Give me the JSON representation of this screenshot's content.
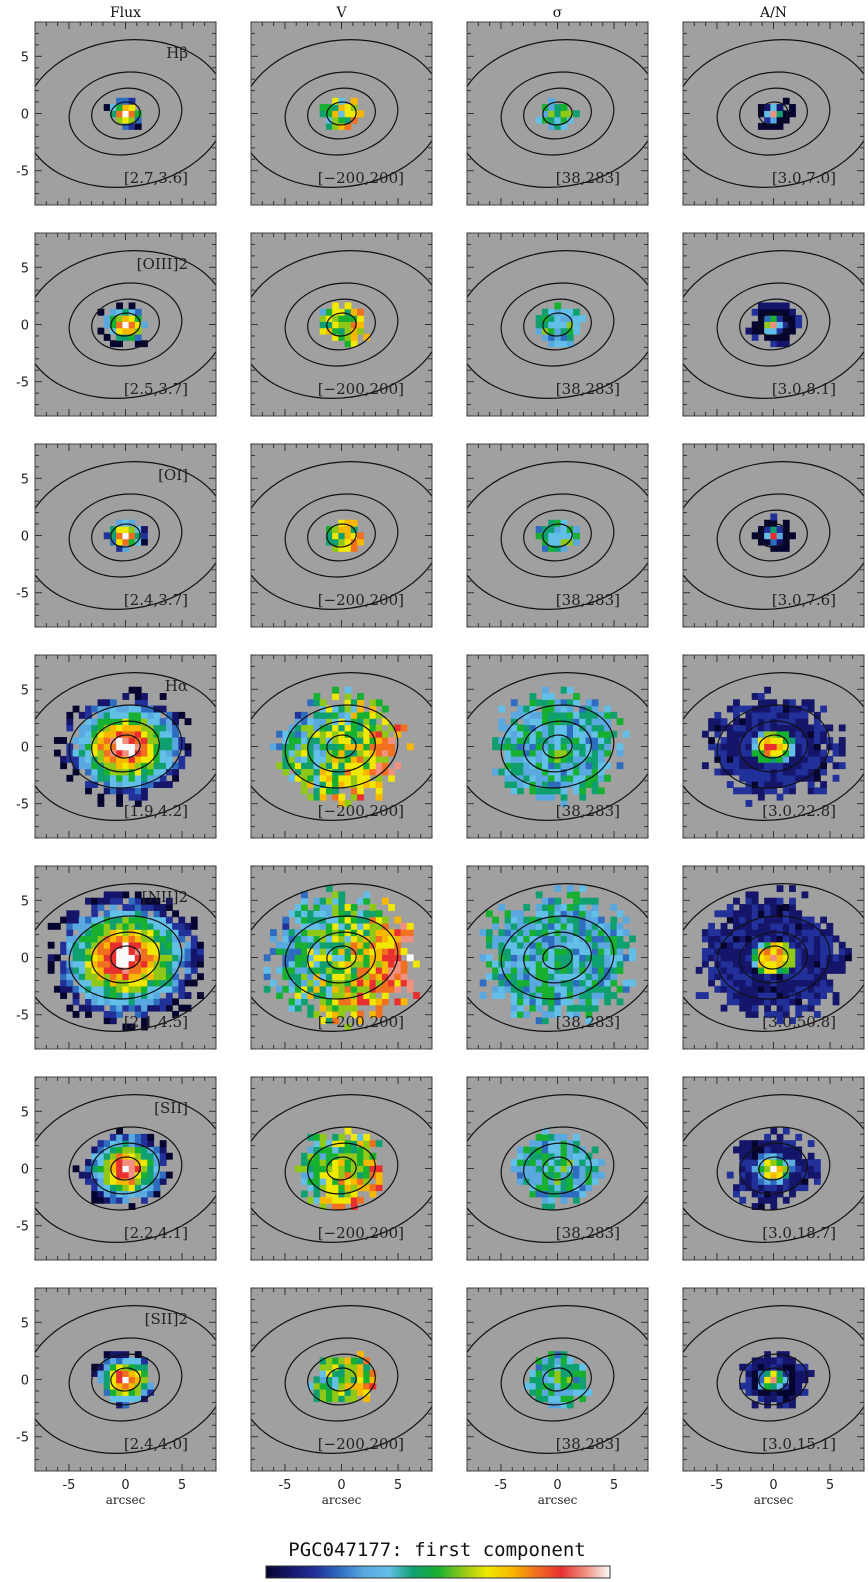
{
  "figure": {
    "title": "PGC047177: first component",
    "xlabel": "arcsec",
    "column_headers": [
      "Flux",
      "V",
      "σ",
      "A/N"
    ],
    "row_lines": [
      "Hβ",
      "[OIII]2",
      "[OI]",
      "Hα",
      "[NII]2",
      "[SII]",
      "[SII]2"
    ],
    "colormap": [
      "#050530",
      "#15156a",
      "#22309a",
      "#2e6cc0",
      "#5aa8e0",
      "#62c0e8",
      "#10a070",
      "#18b030",
      "#90c818",
      "#f0e800",
      "#f8b800",
      "#f07020",
      "#e83030",
      "#f09080",
      "#fafafa"
    ],
    "panel_background": "#a0a0a0"
  },
  "chart_data": {
    "type": "heatmap",
    "xlim": [
      -8,
      8
    ],
    "ylim": [
      -8,
      8
    ],
    "xticks": [
      "-5",
      "0",
      "5"
    ],
    "yticks": [
      "5",
      "0",
      "-5"
    ],
    "ranges": [
      [
        "[2.7,3.6]",
        "[−200,200]",
        "[38,283]",
        "[3.0,7.0]"
      ],
      [
        "[2.5,3.7]",
        "[−200,200]",
        "[38,283]",
        "[3.0,8.1]"
      ],
      [
        "[2.4,3.7]",
        "[−200,200]",
        "[38,283]",
        "[3.0,7.6]"
      ],
      [
        "[1.9,4.2]",
        "[−200,200]",
        "[38,283]",
        "[3.0,22.8]"
      ],
      [
        "[2.1,4.5]",
        "[−200,200]",
        "[38,283]",
        "[3.0,50.8]"
      ],
      [
        "[2.2,4.1]",
        "[−200,200]",
        "[38,283]",
        "[3.0,18.7]"
      ],
      [
        "[2.4,4.0]",
        "[−200,200]",
        "[38,283]",
        "[3.0,15.1]"
      ]
    ],
    "emission_extent_arcsec": [
      1.5,
      2.0,
      1.6,
      5.0,
      6.0,
      3.5,
      2.6
    ],
    "contour_semi_axes_arcsec": [
      [
        1.3,
        1.0
      ],
      [
        3.0,
        2.2
      ],
      [
        5.0,
        3.6
      ],
      [
        9.0,
        6.4
      ]
    ]
  }
}
